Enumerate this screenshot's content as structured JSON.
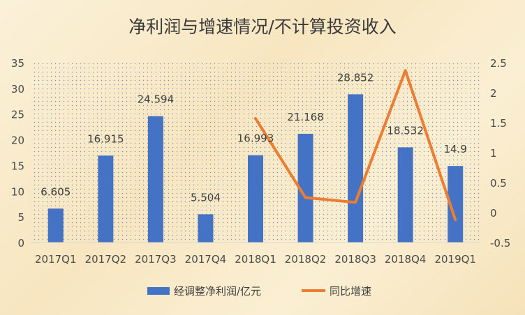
{
  "chart_data": {
    "type": "bar",
    "title": "净利润与增速情况/不计算投资收入",
    "categories": [
      "2017Q1",
      "2017Q2",
      "2017Q3",
      "2017Q4",
      "2018Q1",
      "2018Q2",
      "2018Q3",
      "2018Q4",
      "2019Q1"
    ],
    "series": [
      {
        "name": "经调整净利润/亿元",
        "type": "bar",
        "axis": "left",
        "color": "#4472c4",
        "values": [
          6.605,
          16.915,
          24.594,
          5.504,
          16.993,
          21.168,
          28.852,
          18.532,
          14.9
        ],
        "labels": [
          "6.605",
          "16.915",
          "24.594",
          "5.504",
          "16.993",
          "21.168",
          "28.852",
          "18.532",
          "14.9"
        ]
      },
      {
        "name": "同比增速",
        "type": "line",
        "axis": "right",
        "color": "#ed7d31",
        "values": [
          null,
          null,
          null,
          null,
          1.57,
          0.25,
          0.17,
          2.37,
          -0.12
        ]
      }
    ],
    "y_left": {
      "min": 0,
      "max": 35,
      "step": 5,
      "ticks": [
        "0",
        "5",
        "10",
        "15",
        "20",
        "25",
        "30",
        "35"
      ]
    },
    "y_right": {
      "min": -0.5,
      "max": 2.5,
      "ticks": [
        "-0.5",
        "0",
        "0.5",
        "1",
        "1.5",
        "2",
        "2.5"
      ]
    },
    "grid": false,
    "plot_background": "dotted",
    "legend_position": "bottom"
  }
}
